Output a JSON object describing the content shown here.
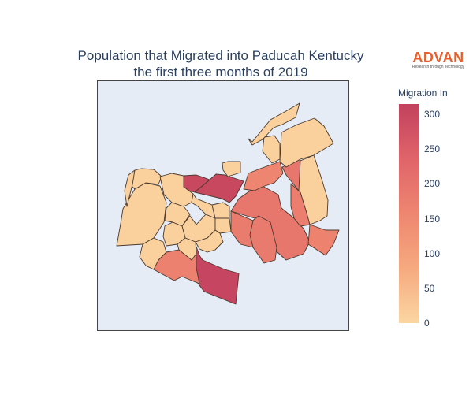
{
  "title_line1": "Population that Migrated into Paducah Kentucky",
  "title_line2": "the first three months of 2019",
  "logo": {
    "name": "ADVAN",
    "tagline": "Research through Technology",
    "color": "#e85d2c"
  },
  "colorbar": {
    "title": "Migration In",
    "ticks": [
      "0",
      "50",
      "100",
      "150",
      "200",
      "250",
      "300"
    ],
    "range": [
      0,
      315
    ],
    "colors": [
      "#fbd6a1",
      "#f6a97f",
      "#ee8670",
      "#e0646a",
      "#c2415e"
    ]
  },
  "map": {
    "background": "#e5ecf6",
    "border_color": "#4a3a2f"
  },
  "chart_data": {
    "type": "choropleth",
    "title": "Population that Migrated into Paducah Kentucky the first three months of 2019",
    "colorbar_title": "Migration In",
    "value_range": [
      0,
      315
    ],
    "regions": [
      {
        "name": "",
        "value": 305
      },
      {
        "name": "",
        "value": 300
      },
      {
        "name": "",
        "value": 300
      },
      {
        "name": "",
        "value": 195
      },
      {
        "name": "",
        "value": 195
      },
      {
        "name": "",
        "value": 185
      },
      {
        "name": "",
        "value": 180
      },
      {
        "name": "",
        "value": 175
      },
      {
        "name": "",
        "value": 170
      },
      {
        "name": "",
        "value": 165
      },
      {
        "name": "",
        "value": 160
      },
      {
        "name": "",
        "value": 10
      },
      {
        "name": "",
        "value": 10
      },
      {
        "name": "",
        "value": 10
      },
      {
        "name": "",
        "value": 10
      },
      {
        "name": "",
        "value": 10
      },
      {
        "name": "",
        "value": 10
      },
      {
        "name": "",
        "value": 10
      },
      {
        "name": "",
        "value": 10
      },
      {
        "name": "",
        "value": 10
      },
      {
        "name": "",
        "value": 10
      },
      {
        "name": "",
        "value": 10
      },
      {
        "name": "",
        "value": 10
      },
      {
        "name": "",
        "value": 10
      },
      {
        "name": "",
        "value": 10
      },
      {
        "name": "",
        "value": 10
      },
      {
        "name": "",
        "value": 10
      },
      {
        "name": "",
        "value": 10
      },
      {
        "name": "",
        "value": 10
      }
    ]
  }
}
